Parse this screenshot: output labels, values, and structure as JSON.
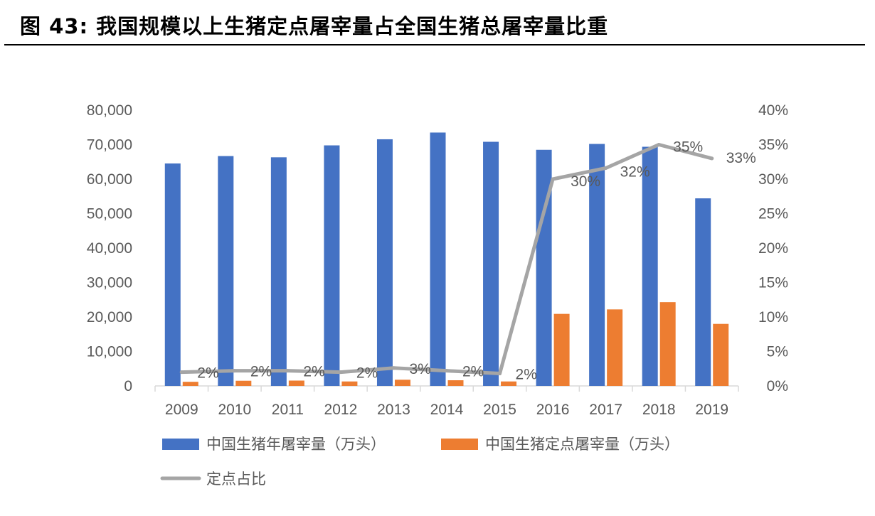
{
  "figure": {
    "title": "图 43:  我国规模以上生猪定点屠宰量占全国生猪总屠宰量比重"
  },
  "chart_data": {
    "type": "bar",
    "categories": [
      "2009",
      "2010",
      "2011",
      "2012",
      "2013",
      "2014",
      "2015",
      "2016",
      "2017",
      "2018",
      "2019"
    ],
    "series": [
      {
        "name": "中国生猪年屠宰量（万头）",
        "kind": "bar",
        "axis": "left",
        "color": "#4472C4",
        "values": [
          64538,
          66686,
          66326,
          69789,
          71557,
          73510,
          70825,
          68502,
          70202,
          69382,
          54419
        ]
      },
      {
        "name": "中国生猪定点屠宰量（万头）",
        "kind": "bar",
        "axis": "left",
        "color": "#ED7D31",
        "values": [
          1200,
          1500,
          1550,
          1300,
          1800,
          1650,
          1300,
          20900,
          22200,
          24300,
          18000
        ]
      },
      {
        "name": "定点占比",
        "kind": "line",
        "axis": "right",
        "color": "#A5A5A5",
        "values": [
          0.02,
          0.022,
          0.022,
          0.02,
          0.026,
          0.022,
          0.018,
          0.3,
          0.316,
          0.35,
          0.33
        ],
        "labels": [
          "2%",
          "2%",
          "2%",
          "2%",
          "3%",
          "2%",
          "2%",
          "30%",
          "32%",
          "35%",
          "33%"
        ]
      }
    ],
    "y_left": {
      "min": 0,
      "max": 80000,
      "ticks": [
        "0",
        "10,000",
        "20,000",
        "30,000",
        "40,000",
        "50,000",
        "60,000",
        "70,000",
        "80,000"
      ]
    },
    "y_right": {
      "min": 0,
      "max": 0.4,
      "ticks": [
        "0%",
        "5%",
        "10%",
        "15%",
        "20%",
        "25%",
        "30%",
        "35%",
        "40%"
      ]
    },
    "legend_position": "bottom"
  }
}
